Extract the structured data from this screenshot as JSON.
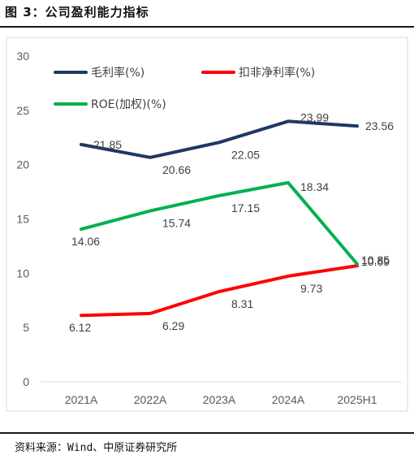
{
  "figure": {
    "title": "图 3：公司盈利能力指标",
    "source": "资料来源：Wind、中原证券研究所"
  },
  "chart_data": {
    "type": "line",
    "categories": [
      "2021A",
      "2022A",
      "2023A",
      "2024A",
      "2025H1"
    ],
    "ylim": [
      0,
      30
    ],
    "yticks": [
      0,
      5,
      10,
      15,
      20,
      25,
      30
    ],
    "grid": false,
    "legend_position": "top-left",
    "series": [
      {
        "name": "毛利率(%)",
        "color": "#1f3864",
        "values": [
          21.85,
          20.66,
          22.05,
          23.99,
          23.56
        ],
        "labels": [
          "21.85",
          "20.66",
          "22.05",
          "23.99",
          "23.56"
        ]
      },
      {
        "name": "扣非净利率(%)",
        "color": "#ff0000",
        "values": [
          6.12,
          6.29,
          8.31,
          9.73,
          10.69
        ],
        "labels": [
          "6.12",
          "6.29",
          "8.31",
          "9.73",
          "10.69"
        ]
      },
      {
        "name": "ROE(加权)(%)",
        "color": "#00b050",
        "values": [
          14.06,
          15.74,
          17.15,
          18.34,
          10.85
        ],
        "labels": [
          "14.06",
          "15.74",
          "17.15",
          "18.34",
          "10.85"
        ]
      }
    ]
  }
}
